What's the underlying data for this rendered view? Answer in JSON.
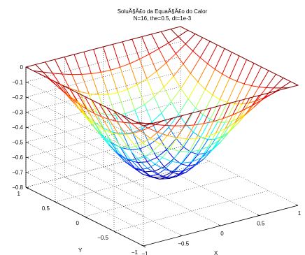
{
  "chart_data": {
    "type": "surface-mesh",
    "title": "SoluÃ§Ã£o da EquaÃ§Ã£o do Calor",
    "subtitle": "N=16, the=0.5, dt=1e-3",
    "xlabel": "X",
    "ylabel": "Y",
    "zlabel": "",
    "xlim": [
      -1,
      1
    ],
    "ylim": [
      -1,
      1
    ],
    "zlim": [
      -0.8,
      0
    ],
    "x_ticks": [
      -1,
      -0.5,
      0,
      0.5,
      1
    ],
    "x_tick_labels": [
      "−1",
      "−0.5",
      "0",
      "0.5",
      "1"
    ],
    "y_ticks": [
      -1,
      -0.5,
      0,
      0.5,
      1
    ],
    "y_tick_labels": [
      "−1",
      "−0.5",
      "0",
      "0.5",
      "1"
    ],
    "z_ticks": [
      0,
      -0.1,
      -0.2,
      -0.3,
      -0.4,
      -0.5,
      -0.6,
      -0.7,
      -0.8
    ],
    "z_tick_labels": [
      "0",
      "−0.1",
      "−0.2",
      "−0.3",
      "−0.4",
      "−0.5",
      "−0.6",
      "−0.7",
      "−0.8"
    ],
    "grid": true,
    "colormap": "jet",
    "mesh_nodes_per_side": 17,
    "surface": {
      "description": "z = -A * cos(pi*x/2) * cos(pi*y/2), zero on boundary",
      "min_value": -0.67
    }
  }
}
